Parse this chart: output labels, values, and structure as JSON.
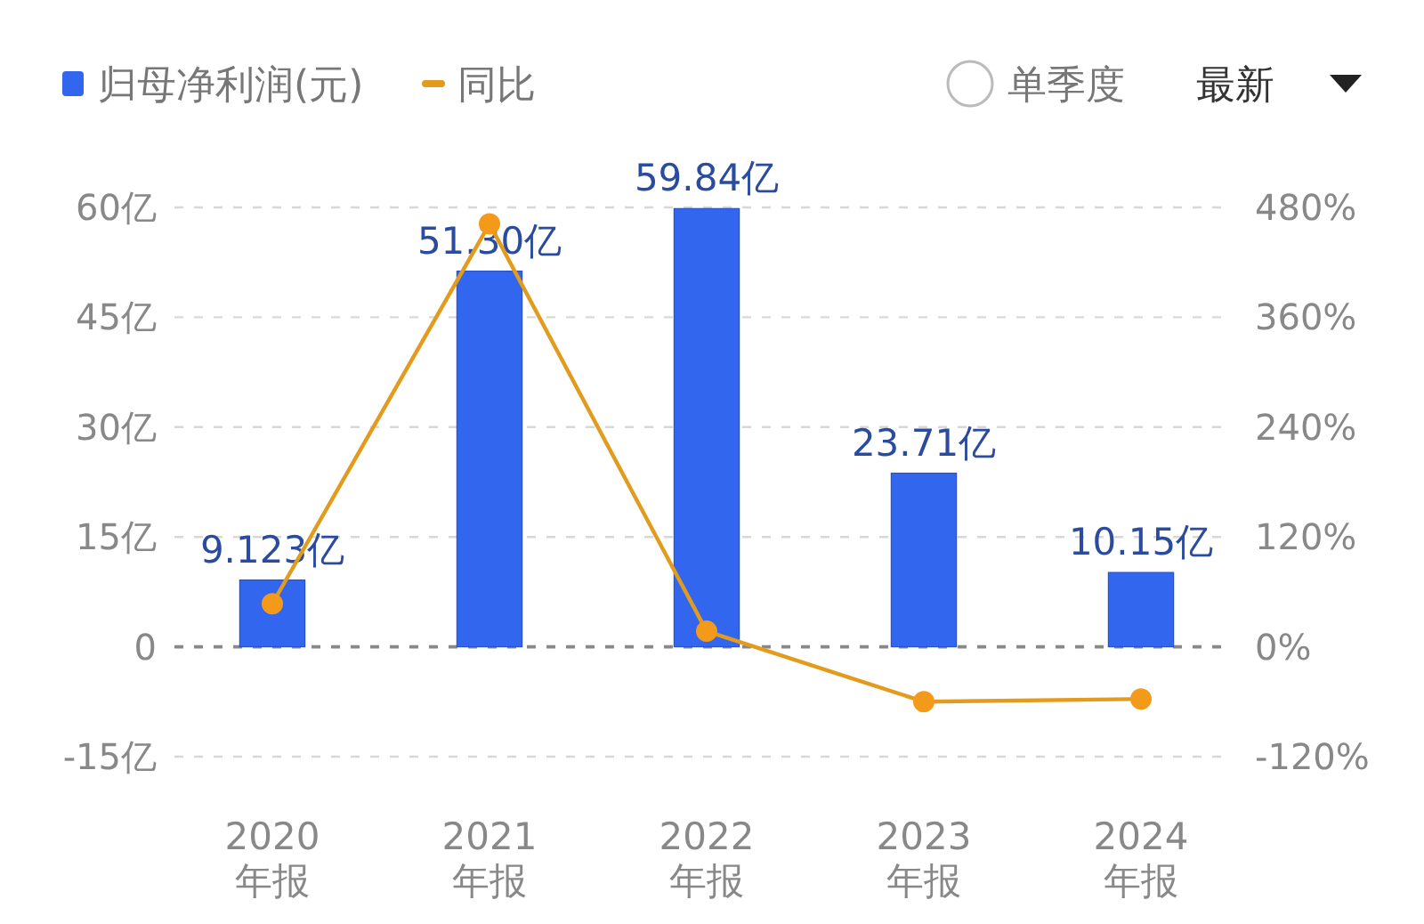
{
  "chart_data": {
    "type": "bar",
    "categories": [
      "2020\n年报",
      "2021\n年报",
      "2022\n年报",
      "2023\n年报",
      "2024\n年报"
    ],
    "series": [
      {
        "name": "归母净利润(元)",
        "color": "#3366ee",
        "values": [
          9.123,
          51.3,
          59.84,
          23.71,
          10.15
        ],
        "value_labels": [
          "9.123亿",
          "51.30亿",
          "59.84亿",
          "23.71亿",
          "10.15亿"
        ]
      },
      {
        "name": "同比",
        "type": "line",
        "axis": "y2",
        "color": "#e39b1e",
        "values": [
          47,
          462,
          17,
          -60,
          -57
        ]
      }
    ],
    "ylim": [
      -15,
      60
    ],
    "yticks": [
      {
        "value": -15,
        "label": "-15亿"
      },
      0,
      {
        "value": 15,
        "label": "15亿"
      },
      {
        "value": 30,
        "label": "30亿"
      },
      {
        "value": 45,
        "label": "45亿"
      },
      {
        "value": 60,
        "label": "60亿"
      }
    ],
    "y2lim": [
      -120,
      480
    ],
    "y2ticks": [
      {
        "value": -120,
        "label": "-120%"
      },
      {
        "value": 0,
        "label": "0%"
      },
      {
        "value": 120,
        "label": "120%"
      },
      {
        "value": 240,
        "label": "240%"
      },
      {
        "value": 360,
        "label": "360%"
      },
      {
        "value": 480,
        "label": "480%"
      }
    ],
    "ref_lines": [
      {
        "axis": "y",
        "value": 0,
        "color": "#888888",
        "line_style": "dashed"
      }
    ],
    "grid": "y",
    "legend": "top left",
    "marker": "circle",
    "line_style": "solid",
    "annotations": [
      "单季度",
      "最新"
    ]
  }
}
